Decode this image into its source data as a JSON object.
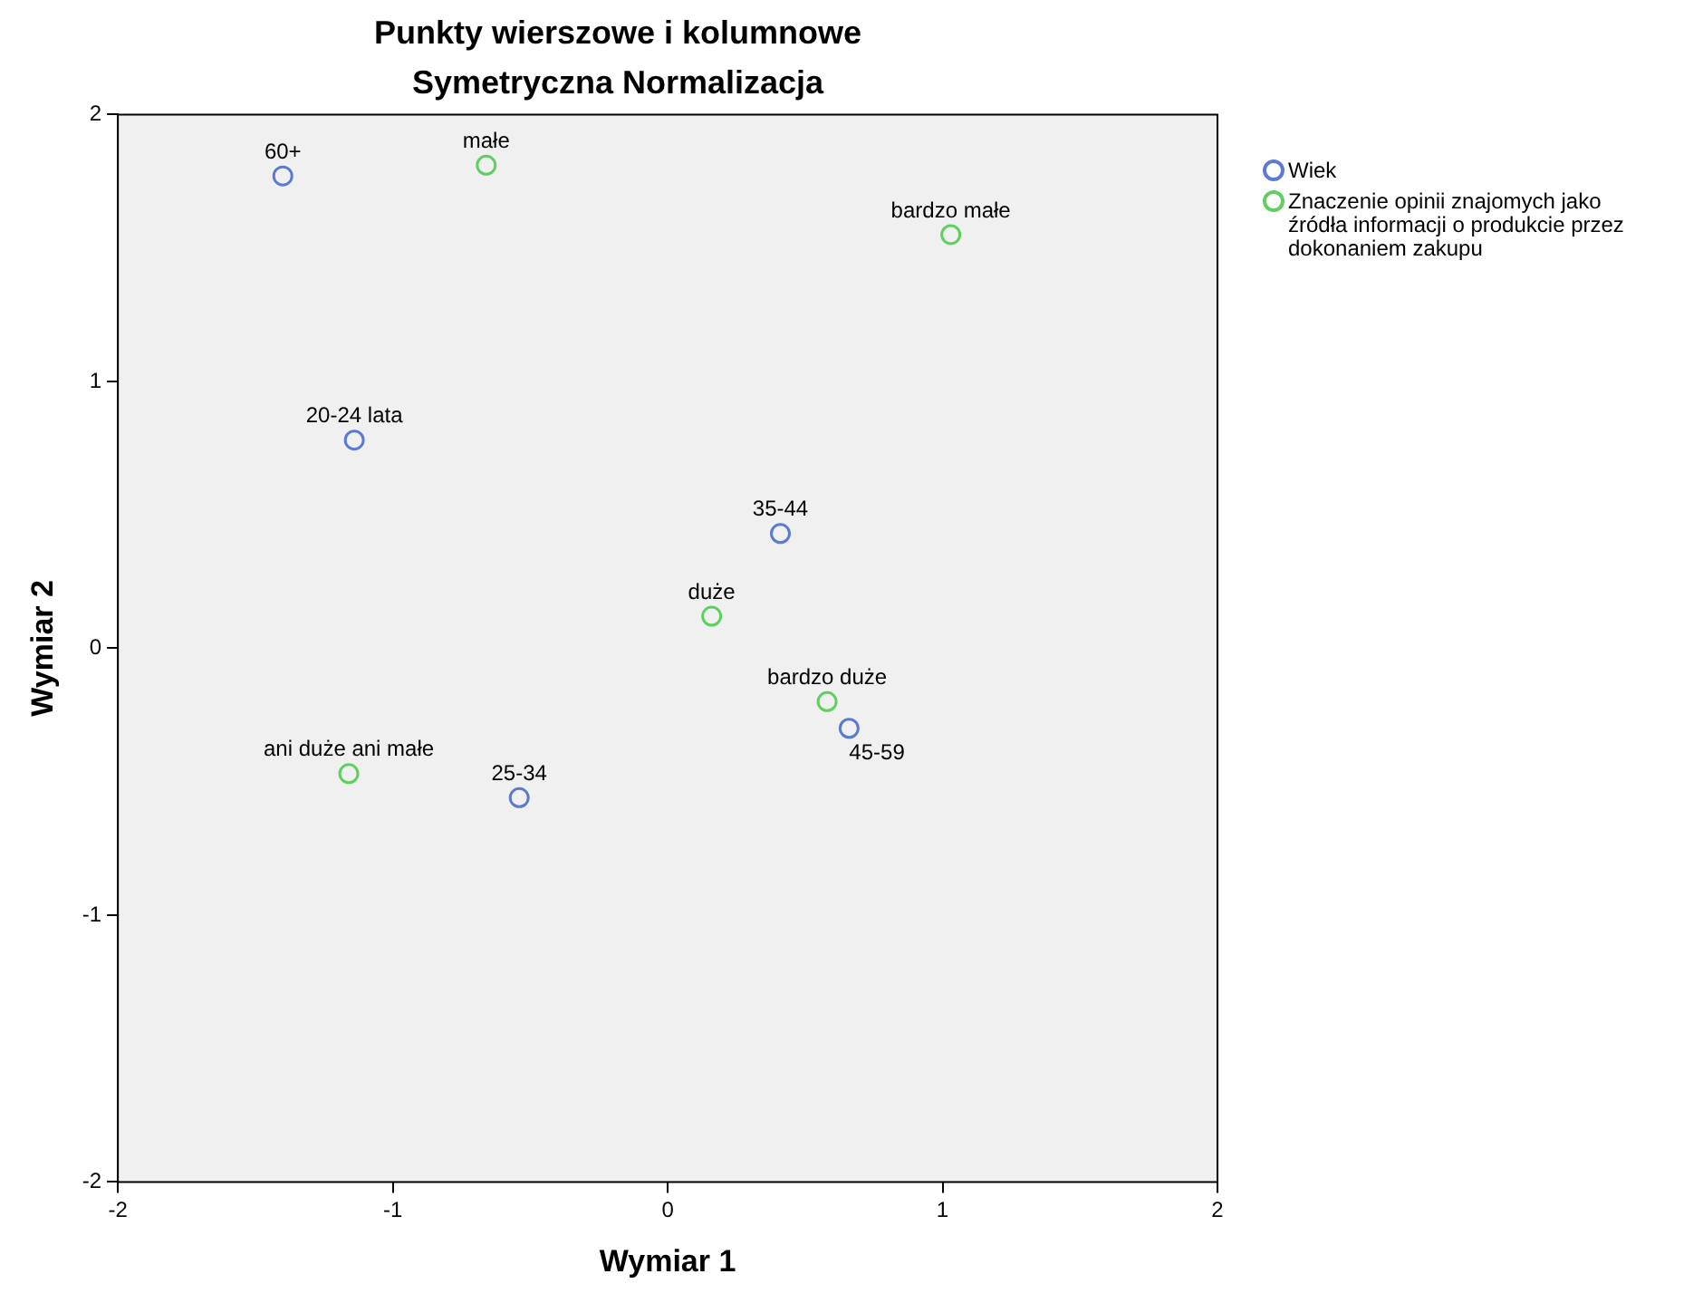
{
  "chart_data": {
    "type": "scatter",
    "title": "Punkty wierszowe i kolumnowe",
    "subtitle": "Symetryczna Normalizacja",
    "xlabel": "Wymiar 1",
    "ylabel": "Wymiar 2",
    "series": [
      {
        "name": "Wiek",
        "color": "#5b7bd0",
        "x": [
          -1.4,
          -1.14,
          0.41,
          0.66,
          -0.54
        ],
        "values": [
          1.77,
          0.78,
          0.43,
          -0.3,
          -0.56
        ]
      },
      {
        "name": "Znaczenie opinii znajomych jako źródła informacji o produkcie przez dokonaniem zakupu",
        "color": "#5fcf5f",
        "x": [
          -0.66,
          1.03,
          0.16,
          0.58,
          -1.16
        ],
        "values": [
          1.81,
          1.55,
          0.12,
          -0.2,
          -0.47
        ]
      }
    ],
    "annotations": [
      {
        "text": "60+",
        "x": -1.4,
        "y": 1.77
      },
      {
        "text": "20-24 lata",
        "x": -1.14,
        "y": 0.78
      },
      {
        "text": "35-44",
        "x": 0.41,
        "y": 0.43
      },
      {
        "text": "45-59",
        "x": 0.66,
        "y": -0.3
      },
      {
        "text": "25-34",
        "x": -0.54,
        "y": -0.56
      },
      {
        "text": "małe",
        "x": -0.66,
        "y": 1.81
      },
      {
        "text": "bardzo małe",
        "x": 1.03,
        "y": 1.55
      },
      {
        "text": "duże",
        "x": 0.16,
        "y": 0.12
      },
      {
        "text": "bardzo duże",
        "x": 0.58,
        "y": -0.2
      },
      {
        "text": "ani duże ani małe",
        "x": -1.16,
        "y": -0.47
      }
    ],
    "xlim": [
      -2,
      2
    ],
    "xticks": [
      -2,
      -1,
      0,
      1,
      2
    ],
    "ylim": [
      -2,
      2
    ],
    "yticks": [
      -2,
      -1,
      0,
      1,
      2
    ],
    "grid": false,
    "legend": "right",
    "marker": "circle"
  }
}
